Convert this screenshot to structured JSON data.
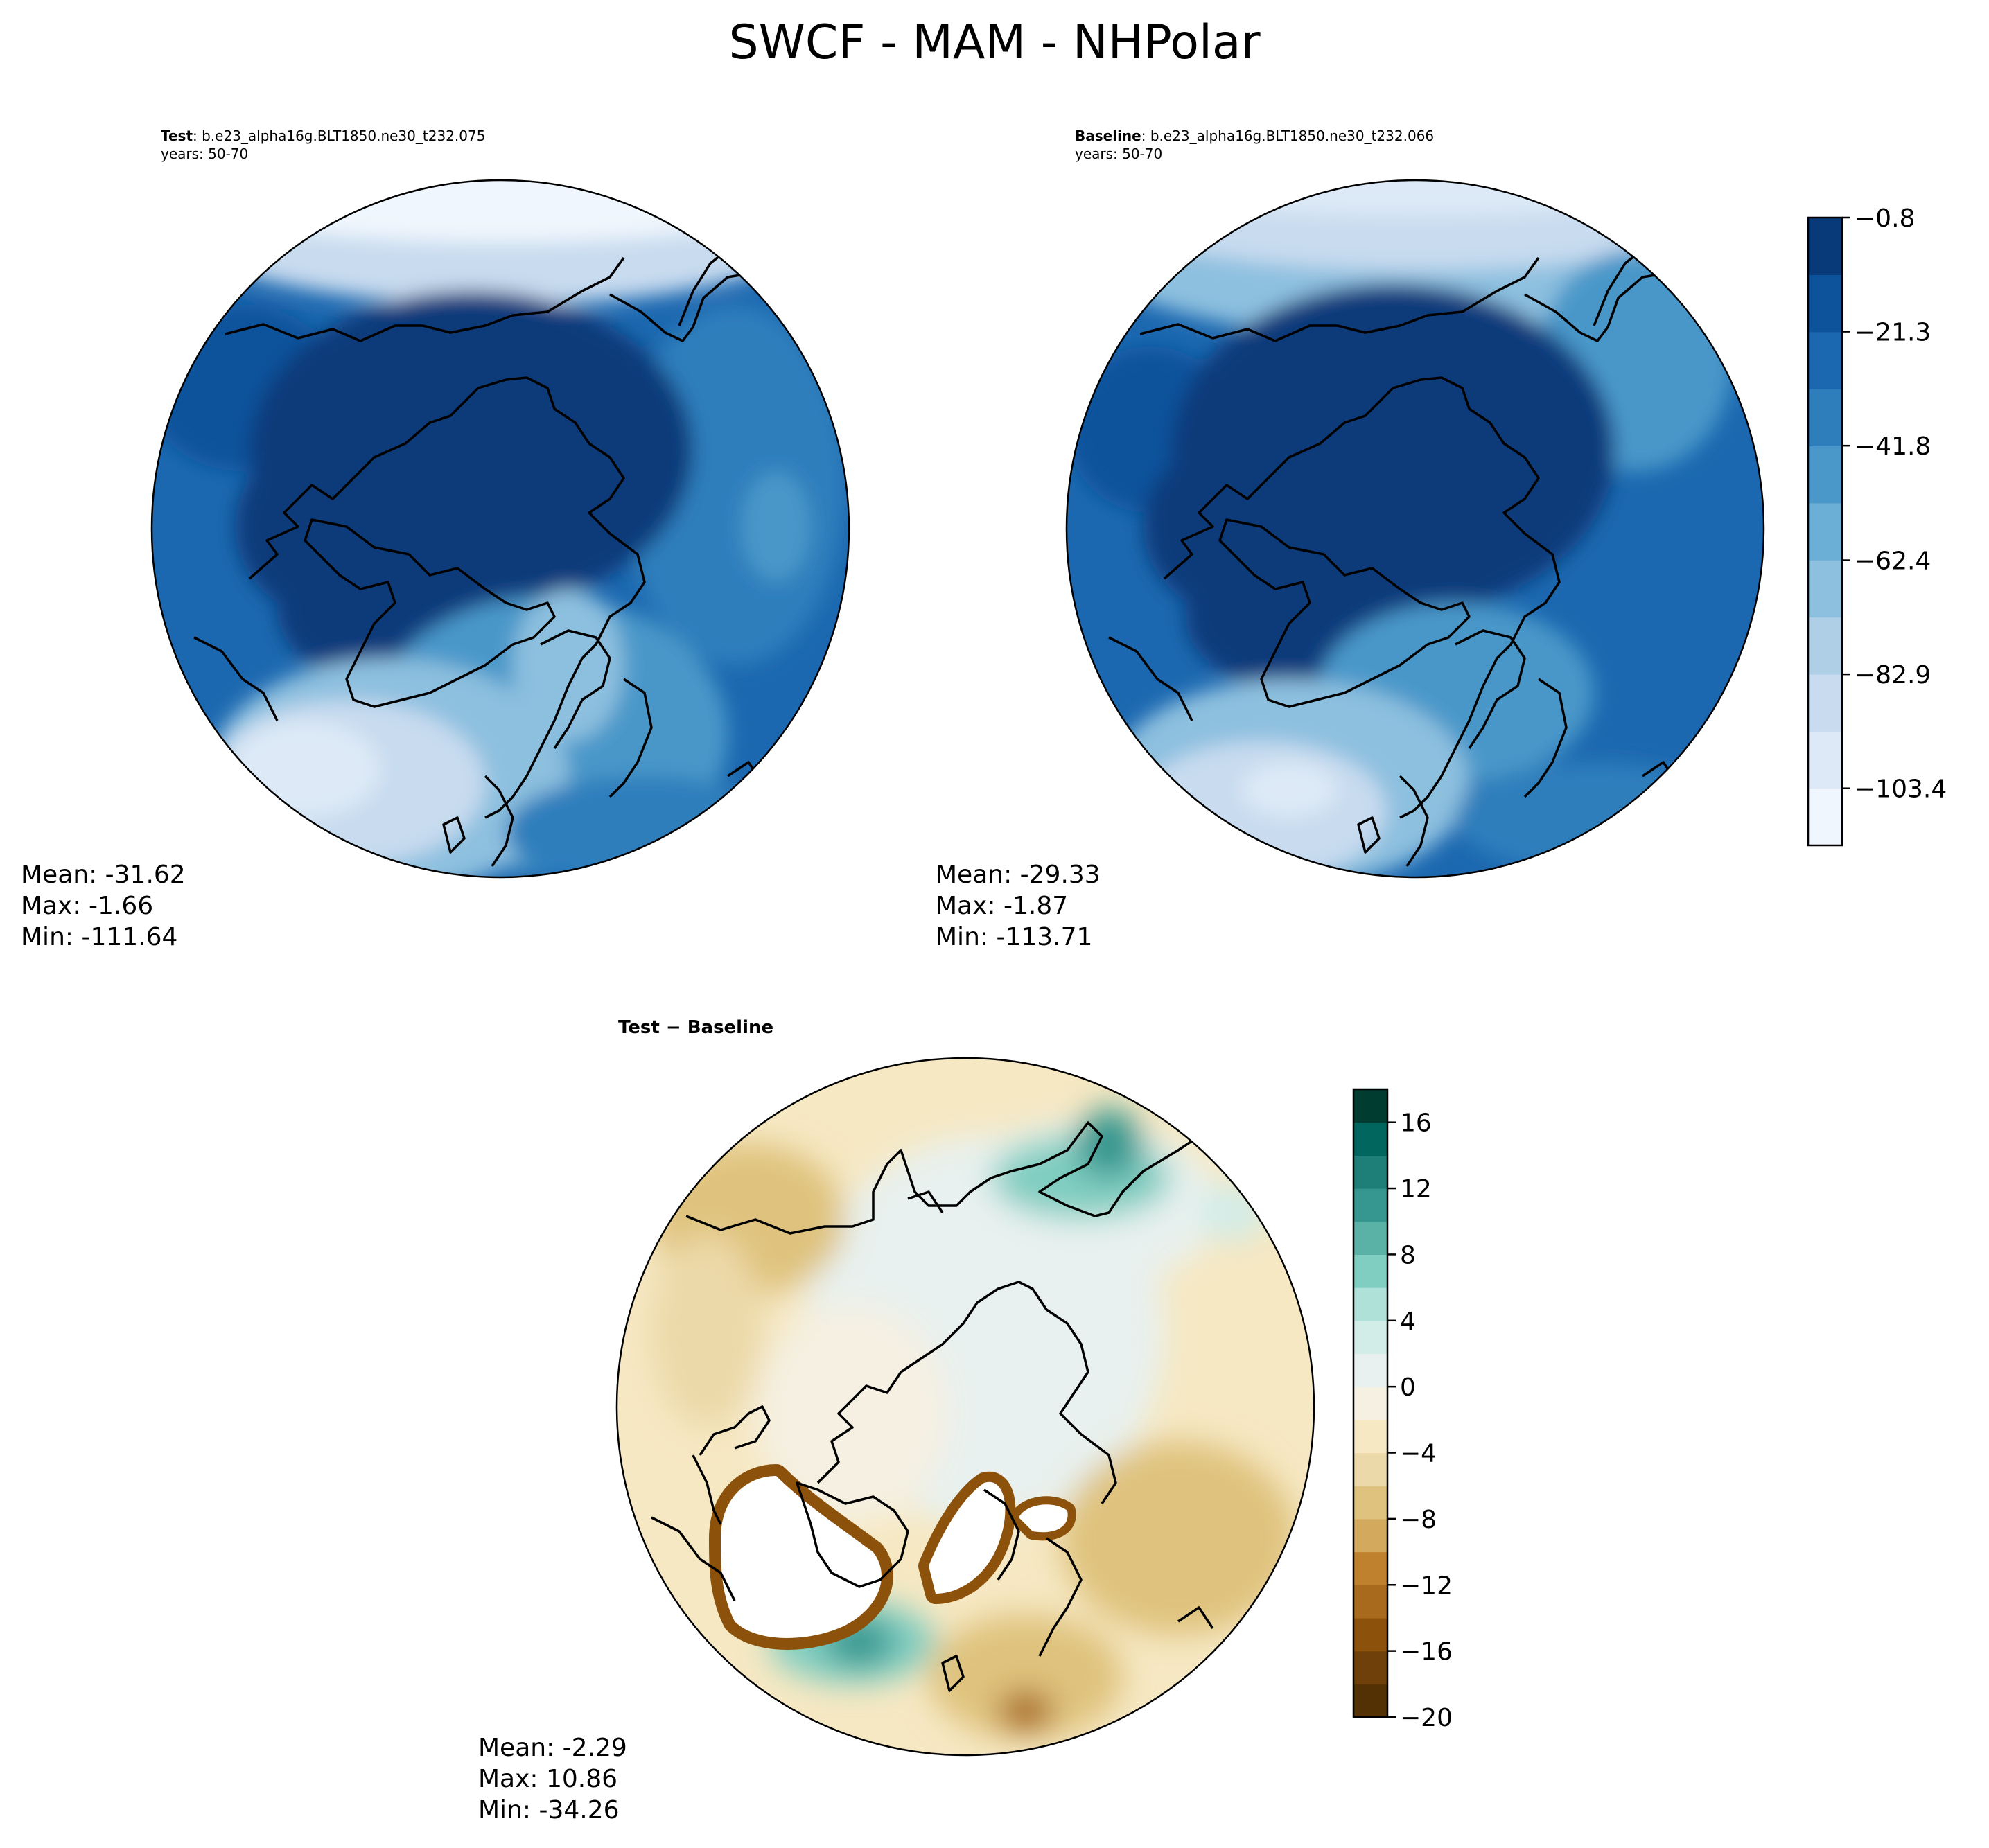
{
  "title": "SWCF - MAM - NHPolar",
  "panels": {
    "test": {
      "label_bold": "Test",
      "case": ": b.e23_alpha16g.BLT1850.ne30_t232.075",
      "years": "years: 50-70",
      "stats": [
        "Mean: -31.62",
        "Max: -1.66",
        "Min: -111.64"
      ]
    },
    "baseline": {
      "label_bold": "Baseline",
      "case": ": b.e23_alpha16g.BLT1850.ne30_t232.066",
      "years": "years: 50-70",
      "stats": [
        "Mean: -29.33",
        "Max: -1.87",
        "Min: -113.71"
      ]
    },
    "diff": {
      "title": "Test − Baseline",
      "stats": [
        "Mean: -2.29",
        "Max: 10.86",
        "Min: -34.26"
      ]
    }
  },
  "colorbar_main": {
    "ticks": [
      "−0.8",
      "−21.3",
      "−41.8",
      "−62.4",
      "−82.9",
      "−103.4"
    ],
    "tick_values": [
      -0.8,
      -21.3,
      -41.8,
      -62.4,
      -82.9,
      -103.4
    ],
    "range": [
      -113.65,
      -0.8
    ],
    "colors": [
      "#f0f6fd",
      "#dde9f6",
      "#c8dbef",
      "#aecfe6",
      "#8dc0df",
      "#6baed6",
      "#4a97c9",
      "#2f7ebc",
      "#1c68b0",
      "#0d539c",
      "#083a7a"
    ]
  },
  "colorbar_diff": {
    "ticks": [
      "16",
      "12",
      "8",
      "4",
      "0",
      "−4",
      "−8",
      "−12",
      "−16",
      "−20"
    ],
    "tick_values": [
      16,
      12,
      8,
      4,
      0,
      -4,
      -8,
      -12,
      -16,
      -20
    ],
    "range": [
      -20,
      18
    ],
    "colors": [
      "#543005",
      "#6f4009",
      "#8c510a",
      "#a86a1c",
      "#bf812d",
      "#d3a95e",
      "#dfc27d",
      "#ecd9a9",
      "#f6e8c3",
      "#f5f0e2",
      "#e8f1ef",
      "#d2ece8",
      "#b0e1d9",
      "#80cdc1",
      "#5ab1a6",
      "#35978f",
      "#1d7f77",
      "#01665e",
      "#003c30"
    ]
  }
}
